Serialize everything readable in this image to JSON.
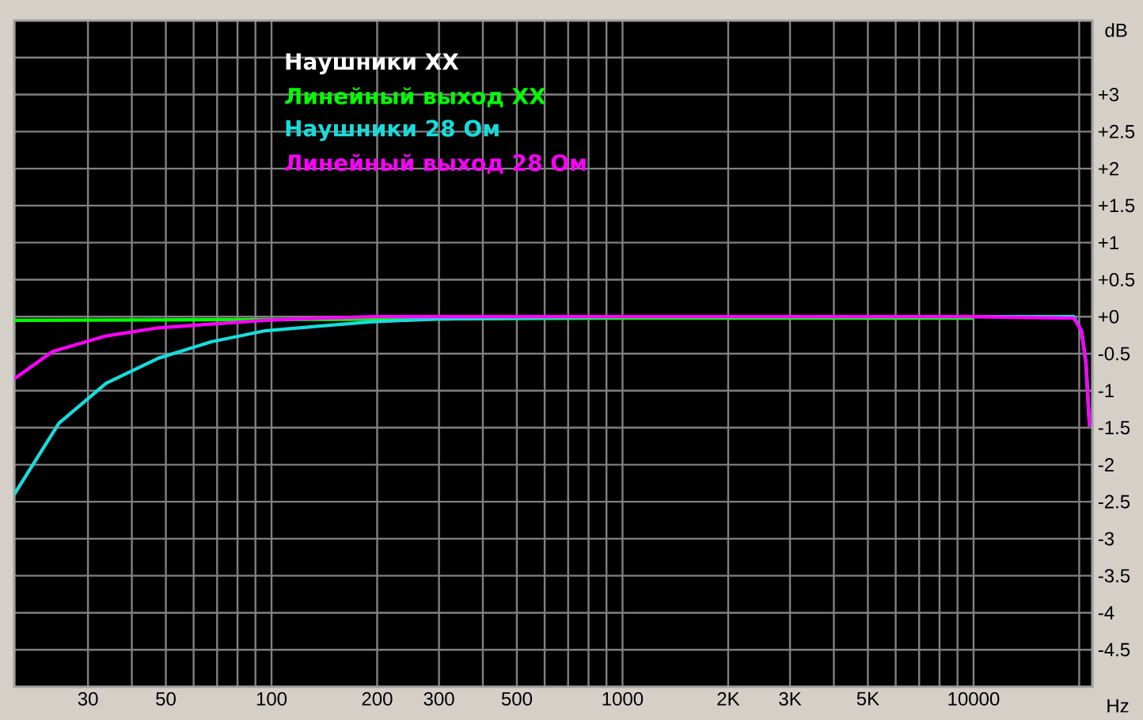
{
  "chart_data": {
    "type": "line",
    "xlabel": "Hz",
    "ylabel": "dB",
    "log": "x",
    "grid": true,
    "legend": "top left",
    "xlim": [
      18.5,
      21800
    ],
    "ylim": [
      -5,
      4
    ],
    "xticks": [
      30,
      {
        "value": 40,
        "label": null
      },
      50,
      {
        "value": 60,
        "label": null
      },
      {
        "value": 70,
        "label": null
      },
      {
        "value": 80,
        "label": null
      },
      {
        "value": 90,
        "label": null
      },
      100,
      200,
      300,
      {
        "value": 400,
        "label": null
      },
      500,
      {
        "value": 600,
        "label": null
      },
      {
        "value": 700,
        "label": null
      },
      {
        "value": 800,
        "label": null
      },
      {
        "value": 900,
        "label": null
      },
      1000,
      {
        "value": 2000,
        "label": "2K"
      },
      {
        "value": 3000,
        "label": "3K"
      },
      {
        "value": 4000,
        "label": null
      },
      {
        "value": 5000,
        "label": "5K"
      },
      {
        "value": 6000,
        "label": null
      },
      {
        "value": 7000,
        "label": null
      },
      {
        "value": 8000,
        "label": null
      },
      {
        "value": 9000,
        "label": null
      },
      10000,
      {
        "value": 20000,
        "label": null
      }
    ],
    "yticks": [
      -4.5,
      -4,
      -3.5,
      -3,
      -2.5,
      -2,
      -1.5,
      -1,
      -0.5,
      {
        "value": 0,
        "label": "+0"
      },
      {
        "value": 0.5,
        "label": "+0.5"
      },
      {
        "value": 1,
        "label": "+1"
      },
      {
        "value": 1.5,
        "label": "+1.5"
      },
      {
        "value": 2,
        "label": "+2"
      },
      {
        "value": 2.5,
        "label": "+2.5"
      },
      {
        "value": 3,
        "label": "+3"
      },
      {
        "value": 3.5,
        "label": null
      }
    ],
    "series": [
      {
        "name": "Наушники XX",
        "color": "#ffffff"
      },
      {
        "name": "Линейный выход XX",
        "color": "#00ff00",
        "x": [
          18.5,
          100,
          1000,
          10000
        ],
        "values": [
          -0.05,
          -0.04,
          -0.02,
          -0.02
        ]
      },
      {
        "name": "Наушники 28 Ом",
        "color": "#18dcdc",
        "x": [
          18.5,
          24.8,
          33.8,
          47.7,
          67.3,
          95.9,
          135,
          191,
          300,
          1000,
          10000,
          19300,
          20300,
          20900,
          21400
        ],
        "values": [
          -2.4,
          -1.44,
          -0.9,
          -0.56,
          -0.34,
          -0.19,
          -0.13,
          -0.07,
          -0.03,
          0,
          0,
          0,
          -0.19,
          -0.62,
          -1.48
        ]
      },
      {
        "name": "Линейный выход 28 Ом",
        "color": "#ff00ff",
        "x": [
          18.5,
          23.8,
          33.8,
          47.7,
          67.3,
          95.9,
          135,
          200,
          1000,
          10000,
          19300,
          20300,
          20900,
          21400
        ],
        "values": [
          -0.84,
          -0.47,
          -0.26,
          -0.15,
          -0.1,
          -0.05,
          -0.02,
          0,
          0,
          0,
          -0.02,
          -0.19,
          -0.62,
          -1.48
        ]
      }
    ]
  }
}
